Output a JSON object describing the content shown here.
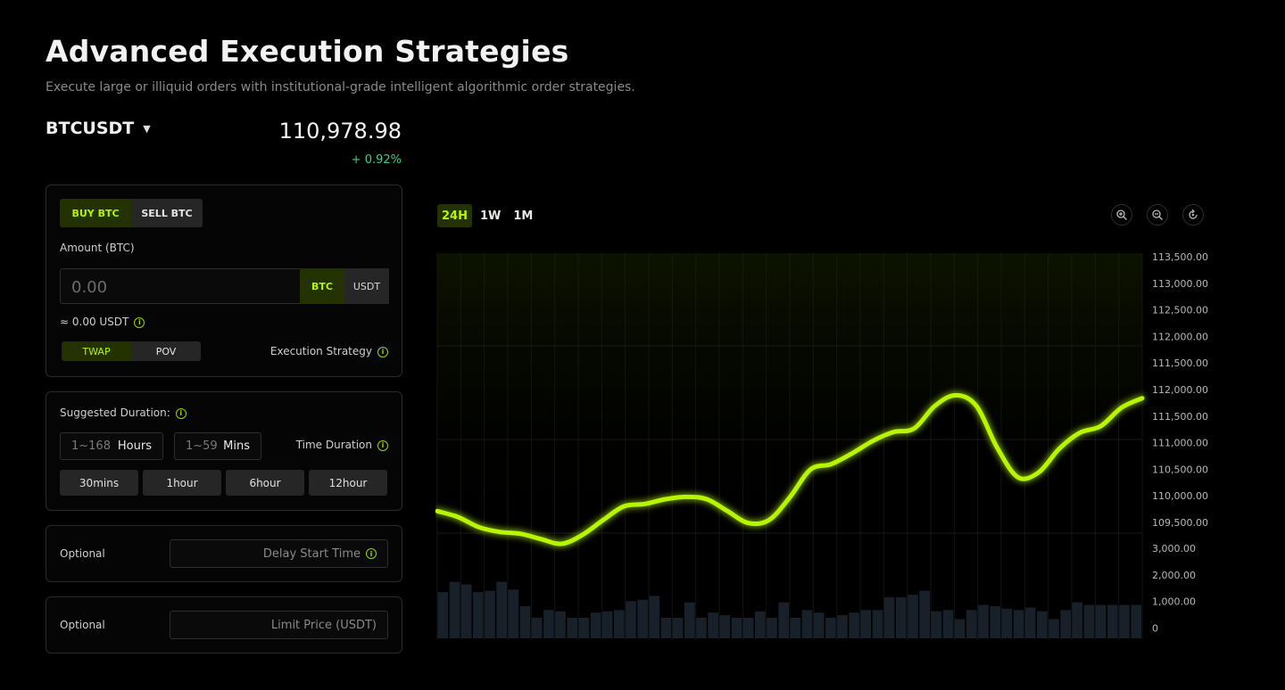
{
  "header": {
    "title": "Advanced Execution Strategies",
    "subtitle": "Execute large or illiquid orders with institutional-grade intelligent algorithmic order strategies."
  },
  "market": {
    "pair": "BTCUSDT",
    "price": "110,978.98",
    "change": "+ 0.92%"
  },
  "order": {
    "buy_label": "BUY BTC",
    "sell_label": "SELL BTC",
    "amount_label": "Amount (BTC)",
    "amount_placeholder": "0.00",
    "unit_btc": "BTC",
    "unit_usdt": "USDT",
    "approx": "≈ 0.00 USDT",
    "strategy_twap": "TWAP",
    "strategy_pov": "POV",
    "strategy_label": "Execution Strategy"
  },
  "duration": {
    "label": "Suggested Duration:",
    "hours_placeholder": "1~168",
    "hours_unit": "Hours",
    "mins_placeholder": "1~59",
    "mins_unit": "Mins",
    "time_label": "Time Duration",
    "presets": [
      "30mins",
      "1hour",
      "6hour",
      "12hour"
    ]
  },
  "delay": {
    "label": "Optional",
    "placeholder": "Delay Start Time"
  },
  "limit": {
    "label": "Optional",
    "placeholder": "Limit Price (USDT)"
  },
  "chart": {
    "ranges": [
      "24H",
      "1W",
      "1M"
    ],
    "active_range": "24H",
    "tools": [
      "zoom-in-icon",
      "zoom-out-icon",
      "reset-icon"
    ],
    "accent": "#b7f500"
  },
  "chart_data": {
    "type": "line",
    "price_axis_ticks": [
      "113,500.00",
      "113,000.00",
      "112,500.00",
      "112,000.00",
      "111,500.00",
      "112,000.00",
      "111,500.00",
      "111,000.00",
      "110,500.00",
      "110,000.00",
      "109,500.00"
    ],
    "volume_axis_ticks": [
      "3,000.00",
      "2,000.00",
      "1,000.00",
      "0"
    ],
    "price_series": [
      109850,
      109750,
      109580,
      109500,
      109470,
      109380,
      109300,
      109450,
      109700,
      109930,
      109970,
      110050,
      110090,
      110050,
      109850,
      109650,
      109700,
      110080,
      110550,
      110640,
      110820,
      111030,
      111180,
      111240,
      111620,
      111800,
      111620,
      110920,
      110420,
      110500,
      110900,
      111170,
      111280,
      111590,
      111750
    ],
    "volume_series": [
      1800,
      2200,
      2100,
      1800,
      1850,
      2200,
      1900,
      1250,
      800,
      1100,
      1050,
      800,
      800,
      1000,
      1050,
      1100,
      1450,
      1500,
      1650,
      800,
      800,
      1400,
      800,
      1000,
      900,
      800,
      800,
      1050,
      800,
      1400,
      800,
      1100,
      1000,
      800,
      900,
      1000,
      1100,
      1100,
      1600,
      1600,
      1700,
      1850,
      1050,
      1100,
      750,
      1100,
      1300,
      1250,
      1150,
      1100,
      1200,
      1050,
      750,
      1100,
      1400,
      1300,
      1300,
      1300,
      1300,
      1300
    ]
  }
}
